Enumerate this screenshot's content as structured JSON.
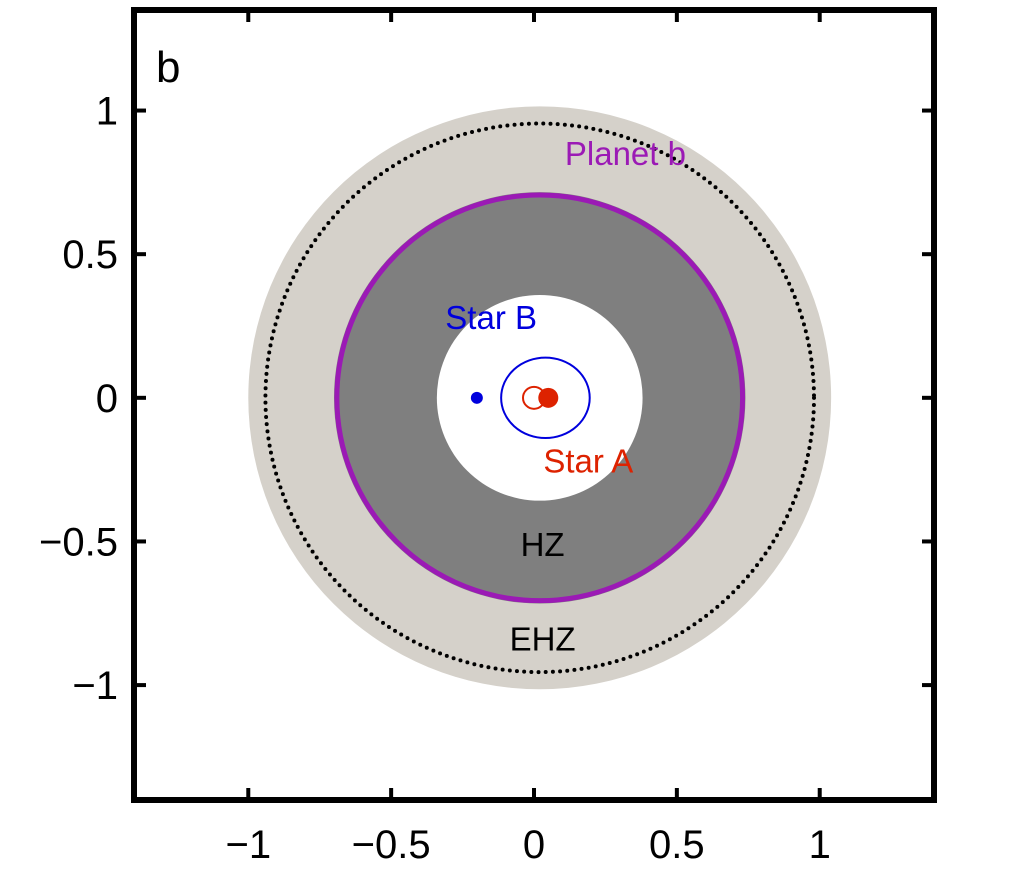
{
  "chart_data": {
    "type": "scatter",
    "panel_label": "b",
    "xlim": [
      -1.4,
      1.4
    ],
    "ylim": [
      -1.4,
      1.35
    ],
    "x_ticks": [
      -1,
      -0.5,
      0,
      0.5,
      1
    ],
    "x_tick_labels": [
      "−1",
      "−0.5",
      "0",
      "0.5",
      "1"
    ],
    "y_ticks": [
      1,
      0.5,
      0,
      -0.5,
      -1
    ],
    "y_tick_labels": [
      "1",
      "0.5",
      "0",
      "−0.5",
      "−1"
    ],
    "regions": {
      "ehz": {
        "label": "EHZ",
        "outer_radius": 1.02,
        "inner_radius": 0.72,
        "color": "#d5d1ca"
      },
      "hz": {
        "label": "HZ",
        "outer_radius": 0.72,
        "inner_radius": 0.36,
        "color": "#7f7f7f"
      }
    },
    "orbits": {
      "ehz_dotted": {
        "center": [
          0.02,
          0
        ],
        "radius": 0.96,
        "color": "#000000"
      },
      "planet_b": {
        "label": "Planet b",
        "center": [
          0.02,
          0
        ],
        "radius": 0.71,
        "color": "#9b1ab5"
      },
      "star_b_orbit": {
        "center": [
          0.04,
          0
        ],
        "radius_x": 0.155,
        "radius_y": 0.14,
        "color": "#0000dd"
      }
    },
    "stars": {
      "star_a": {
        "label": "Star A",
        "x": 0.05,
        "y": 0,
        "color": "#dd2200"
      },
      "star_a_barycenter": {
        "x": 0.0,
        "y": 0,
        "color": "#dd2200"
      },
      "star_b": {
        "label": "Star B",
        "x": -0.2,
        "y": 0,
        "color": "#0000dd"
      }
    },
    "annotations": {
      "planet_b": {
        "x": 0.32,
        "y": 0.81
      },
      "star_b": {
        "x": -0.15,
        "y": 0.24
      },
      "star_a": {
        "x": 0.19,
        "y": -0.26
      },
      "hz": {
        "x": 0.03,
        "y": -0.55
      },
      "ehz": {
        "x": 0.03,
        "y": -0.88
      }
    }
  }
}
